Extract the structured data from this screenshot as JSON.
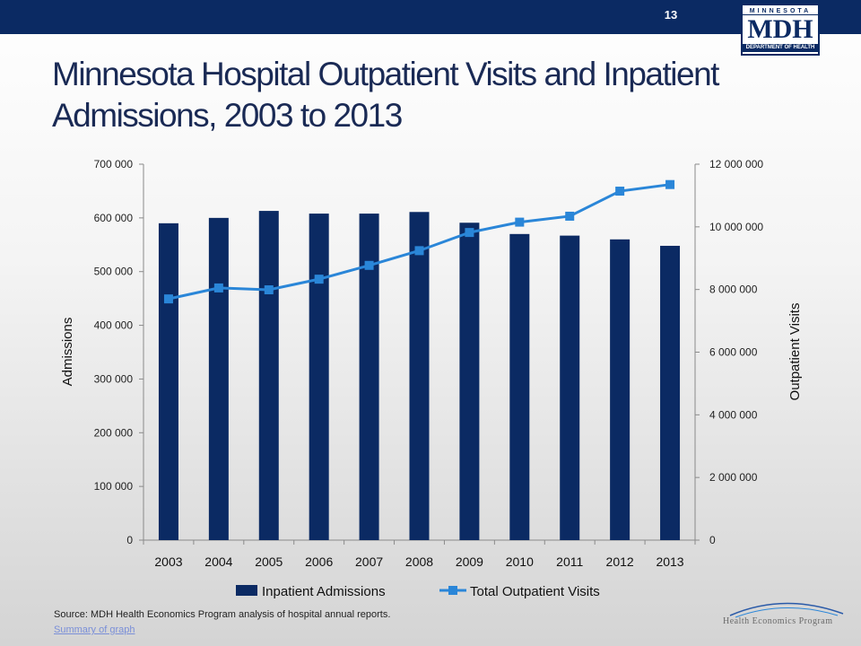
{
  "header": {
    "page_number": "13"
  },
  "logo": {
    "line1": "MINNESOTA",
    "line2": "MDH",
    "line3": "DEPARTMENT OF HEALTH"
  },
  "slide": {
    "title": "Minnesota Hospital Outpatient Visits and Inpatient Admissions, 2003 to 2013"
  },
  "footer": {
    "source": "Source: MDH Health Economics Program analysis of hospital annual reports.",
    "summary_link": "Summary of graph",
    "program_logo_text": "Health Economics Program"
  },
  "colors": {
    "bar": "#0b2a63",
    "line": "#2a86d8",
    "header": "#0b2a63"
  },
  "chart_data": {
    "type": "bar",
    "categories": [
      "2003",
      "2004",
      "2005",
      "2006",
      "2007",
      "2008",
      "2009",
      "2010",
      "2011",
      "2012",
      "2013"
    ],
    "series": [
      {
        "name": "Inpatient Admissions",
        "type": "bar",
        "axis": "left",
        "values": [
          590000,
          600000,
          613000,
          608000,
          608000,
          611000,
          591000,
          570000,
          567000,
          560000,
          548000
        ]
      },
      {
        "name": "Total Outpatient Visits",
        "type": "line",
        "axis": "right",
        "values": [
          7700000,
          8050000,
          7990000,
          8330000,
          8770000,
          9240000,
          9820000,
          10150000,
          10340000,
          11140000,
          11350000
        ]
      }
    ],
    "ylabel": "Admissions",
    "y2label": "Outpatient Visits",
    "ylim": [
      0,
      700000
    ],
    "y2lim": [
      0,
      12000000
    ],
    "yticks": [
      "0",
      "100 000",
      "200 000",
      "300 000",
      "400 000",
      "500 000",
      "600 000",
      "700 000"
    ],
    "y2ticks": [
      "0",
      "2 000 000",
      "4 000 000",
      "6 000 000",
      "8 000 000",
      "10 000 000",
      "12 000 000"
    ],
    "grid": false,
    "legend": "bottom"
  }
}
